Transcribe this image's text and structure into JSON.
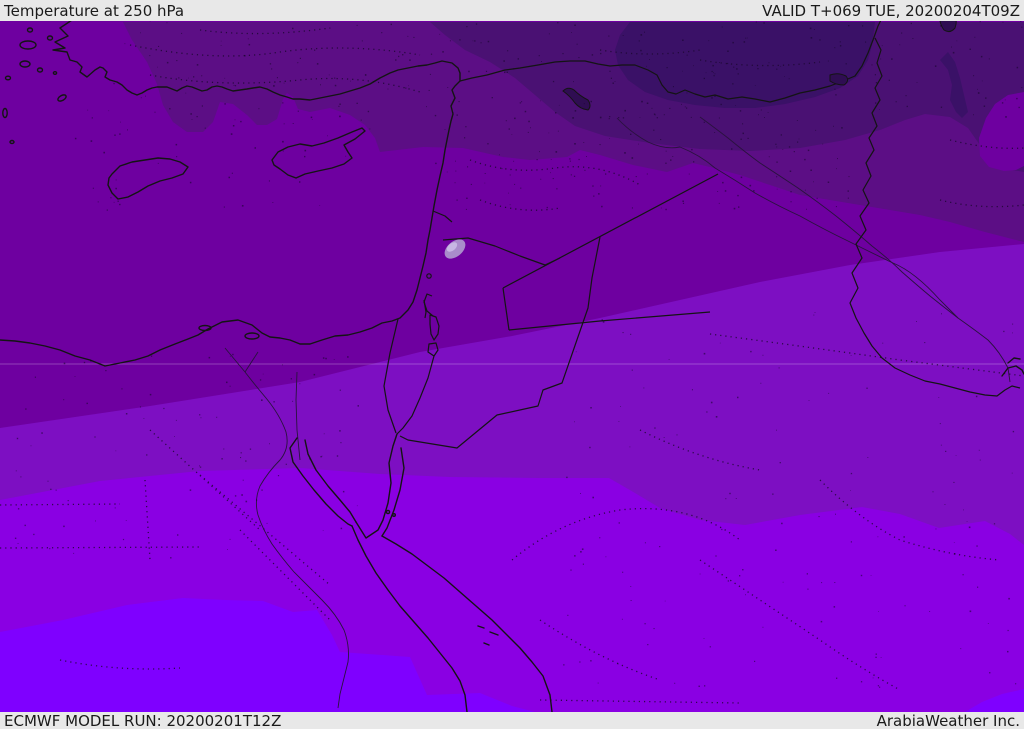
{
  "header": {
    "title": "Temperature at 250 hPa",
    "validity": "VALID T+069 TUE, 20200204T09Z"
  },
  "footer": {
    "model_run": "ECMWF MODEL RUN: 20200201T12Z",
    "provider": "ArabiaWeather Inc."
  },
  "map": {
    "parameter": "Temperature",
    "level": "250 hPa",
    "temperature_bands": [
      {
        "id": "band-1-coldest",
        "hex": "#3A1167"
      },
      {
        "id": "band-2",
        "hex": "#4A1173"
      },
      {
        "id": "band-3",
        "hex": "#5C0E85"
      },
      {
        "id": "band-4",
        "hex": "#6E00A0"
      },
      {
        "id": "band-5",
        "hex": "#7D0FC2"
      },
      {
        "id": "band-6",
        "hex": "#8A00E3"
      },
      {
        "id": "band-7-warmest",
        "hex": "#7F00FF"
      }
    ],
    "colors": {
      "coastline": "#141414",
      "border": "#141414",
      "river": "#2a123f",
      "dotted_border": "#1d0833",
      "graticule": "rgba(255,255,255,0.25)",
      "lake": "#2f0d52",
      "speckle": "rgba(18,4,38,0.55)",
      "warm_spot_outer": "#a98ccb",
      "warm_spot_inner": "#c7b6e4",
      "bar_background": "#e8e8e8",
      "bar_text": "#1a1a1a"
    }
  }
}
